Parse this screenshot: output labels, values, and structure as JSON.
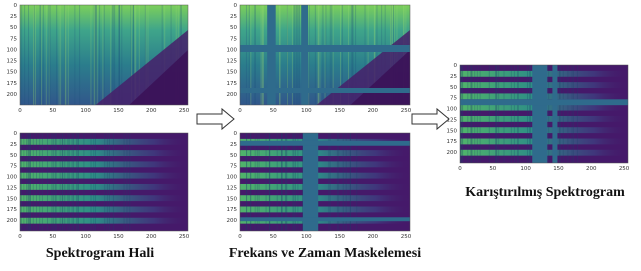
{
  "captions": {
    "original": "Spektrogram Hali",
    "masked": "Frekans ve Zaman Maskelemesi",
    "mixed": "Karıştırılmış Spektrogram"
  },
  "axis": {
    "y_ticks": [
      0,
      25,
      50,
      75,
      100,
      125,
      150,
      175,
      200
    ],
    "x_ticks": [
      0,
      50,
      100,
      150,
      200,
      250
    ]
  }
}
